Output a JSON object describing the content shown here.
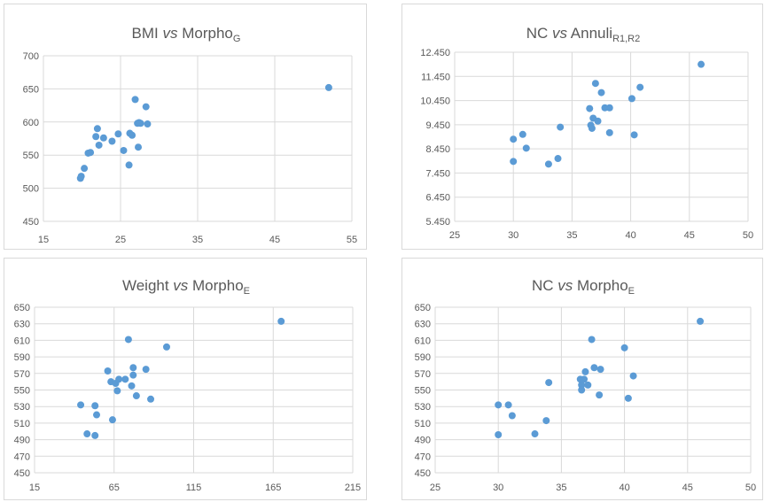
{
  "colors": {
    "point": "#5b9bd5",
    "grid": "#d9d9d9",
    "text": "#595959",
    "border": "#d9d9d9"
  },
  "chart_data": [
    {
      "type": "scatter",
      "title": {
        "pre": "BMI ",
        "vs": "vs",
        "main": " Morpho",
        "sub": "G"
      },
      "xlabel": "",
      "ylabel": "",
      "xlim": [
        15,
        55
      ],
      "ylim": [
        450,
        700
      ],
      "xticks": [
        "15",
        "25",
        "35",
        "45",
        "55"
      ],
      "yticks": [
        "700",
        "650",
        "600",
        "550",
        "500",
        "450"
      ],
      "grid": true,
      "legend": "none",
      "x": [
        19.8,
        19.9,
        20.3,
        20.8,
        21.1,
        21.8,
        22.0,
        22.2,
        22.8,
        23.9,
        24.7,
        25.4,
        26.1,
        26.2,
        26.5,
        26.9,
        27.2,
        27.3,
        27.4,
        27.6,
        28.3,
        28.5,
        52.0
      ],
      "y": [
        515,
        518,
        530,
        553,
        554,
        578,
        590,
        565,
        576,
        571,
        582,
        557,
        535,
        583,
        580,
        634,
        598,
        562,
        599,
        598,
        623,
        597,
        652
      ]
    },
    {
      "type": "scatter",
      "title": {
        "pre": "NC ",
        "vs": "vs",
        "main": " Annuli",
        "sub": "R1,R2"
      },
      "xlabel": "",
      "ylabel": "",
      "xlim": [
        25,
        50
      ],
      "ylim": [
        5450,
        12450
      ],
      "xticks": [
        "25",
        "30",
        "35",
        "40",
        "45",
        "50"
      ],
      "yticks": [
        "12.450",
        "11.450",
        "10.450",
        "9.450",
        "8.450",
        "7.450",
        "6.450",
        "5.450"
      ],
      "grid": true,
      "legend": "none",
      "x": [
        30.0,
        30.0,
        30.8,
        31.1,
        33.0,
        33.8,
        34.0,
        36.5,
        36.6,
        36.7,
        36.8,
        37.0,
        37.2,
        37.5,
        37.8,
        38.2,
        38.2,
        40.1,
        40.3,
        40.8,
        46.0
      ],
      "y": [
        7930,
        8850,
        9050,
        8480,
        7820,
        8050,
        9350,
        10120,
        9430,
        9300,
        9720,
        11160,
        9600,
        10780,
        10150,
        9120,
        10150,
        10530,
        9030,
        11000,
        11950
      ]
    },
    {
      "type": "scatter",
      "title": {
        "pre": "Weight ",
        "vs": "vs",
        "main": " Morpho",
        "sub": "E"
      },
      "xlabel": "",
      "ylabel": "",
      "xlim": [
        15,
        215
      ],
      "ylim": [
        450,
        650
      ],
      "xticks": [
        "15",
        "65",
        "115",
        "165",
        "215"
      ],
      "yticks": [
        "650",
        "630",
        "610",
        "590",
        "570",
        "550",
        "530",
        "510",
        "490",
        "470",
        "450"
      ],
      "grid": true,
      "legend": "none",
      "x": [
        44,
        48,
        53,
        53,
        54,
        61,
        63,
        64,
        66,
        67,
        68,
        72,
        74,
        76,
        77,
        77,
        79,
        85,
        88,
        98,
        170
      ],
      "y": [
        532,
        497,
        495,
        531,
        520,
        573,
        560,
        514,
        558,
        549,
        563,
        563,
        611,
        555,
        577,
        568,
        543,
        575,
        539,
        602,
        633
      ]
    },
    {
      "type": "scatter",
      "title": {
        "pre": "NC ",
        "vs": "vs",
        "main": " Morpho",
        "sub": "E"
      },
      "xlabel": "",
      "ylabel": "",
      "xlim": [
        25,
        50
      ],
      "ylim": [
        450,
        650
      ],
      "xticks": [
        "25",
        "30",
        "35",
        "40",
        "45",
        "50"
      ],
      "yticks": [
        "650",
        "630",
        "610",
        "590",
        "570",
        "550",
        "530",
        "510",
        "490",
        "470",
        "450"
      ],
      "grid": true,
      "legend": "none",
      "x": [
        30.0,
        30.0,
        30.8,
        31.1,
        32.9,
        33.8,
        34.0,
        36.5,
        36.6,
        36.6,
        36.8,
        36.9,
        37.1,
        37.4,
        37.6,
        38.0,
        38.1,
        40.0,
        40.3,
        40.7,
        46.0
      ],
      "y": [
        532,
        496,
        532,
        519,
        497,
        513,
        559,
        563,
        556,
        550,
        563,
        572,
        556,
        611,
        577,
        544,
        575,
        601,
        540,
        567,
        633
      ]
    }
  ]
}
